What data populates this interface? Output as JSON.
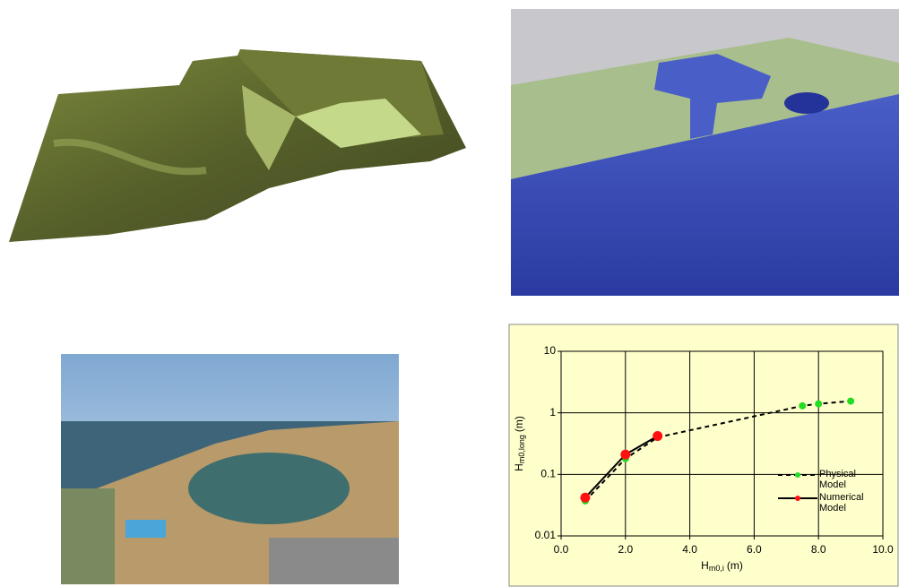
{
  "chart_data": {
    "type": "line",
    "ylabel": {
      "main": "H",
      "sub": "m0,long",
      "unit": "(m)"
    },
    "xlabel": {
      "main": "H",
      "sub": "m0,i",
      "unit": "(m)"
    },
    "xlim": [
      0,
      10
    ],
    "ylim": [
      0.01,
      10
    ],
    "ylog": true,
    "grid": true,
    "legend": "right",
    "xticks": [
      {
        "value": 0,
        "label": "0.0"
      },
      {
        "value": 2,
        "label": "2.0"
      },
      {
        "value": 4,
        "label": "4.0"
      },
      {
        "value": 6,
        "label": "6.0"
      },
      {
        "value": 8,
        "label": "8.0"
      },
      {
        "value": 10,
        "label": "10.0"
      }
    ],
    "yticks": [
      0.01,
      0.1,
      1,
      10
    ],
    "series": [
      {
        "name": "Physical Model",
        "color": "#22dd22",
        "line_style": "dashed",
        "x": [
          0.75,
          2,
          3,
          7.5,
          8,
          9
        ],
        "values": [
          0.037,
          0.18,
          0.4,
          1.3,
          1.4,
          1.55
        ]
      },
      {
        "name": "Numerical Model",
        "color": "#ff1111",
        "line_style": "solid",
        "x": [
          0.75,
          2,
          3
        ],
        "values": [
          0.042,
          0.21,
          0.42
        ]
      }
    ]
  }
}
